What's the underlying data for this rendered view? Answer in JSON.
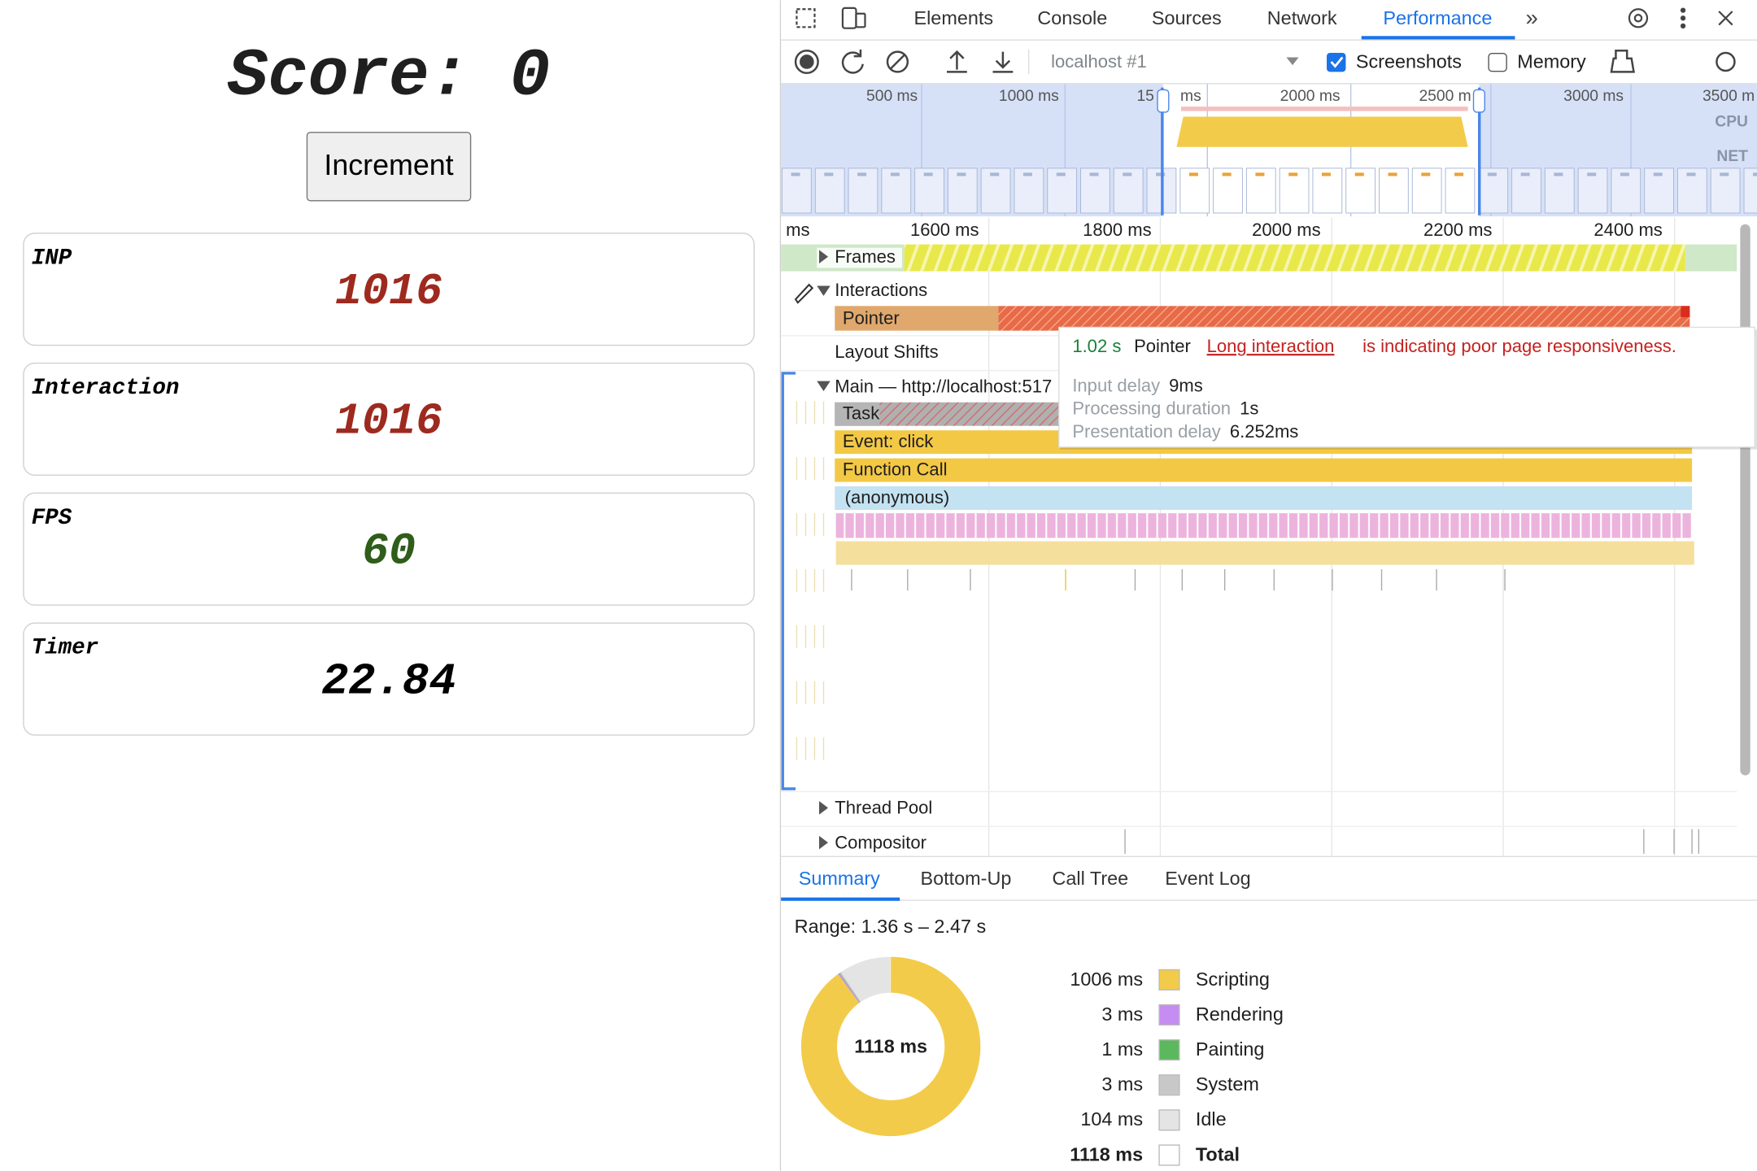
{
  "app": {
    "score": "Score: 0",
    "button": "Increment",
    "cards": [
      {
        "label": "INP",
        "value": "1016"
      },
      {
        "label": "Interaction",
        "value": "1016"
      },
      {
        "label": "FPS",
        "value": "60"
      },
      {
        "label": "Timer",
        "value": "22.84"
      }
    ]
  },
  "devtools": {
    "tabs": [
      "Elements",
      "Console",
      "Sources",
      "Network",
      "Performance"
    ],
    "toolbar": {
      "target": "localhost #1",
      "screenshots": "Screenshots",
      "memory": "Memory"
    },
    "overview_ticks": [
      "500 ms",
      "1000 ms",
      "15",
      "ms",
      "2000 ms",
      "2500 m",
      "3000 ms",
      "3500 m"
    ],
    "overview_labels": [
      "CPU",
      "NET"
    ],
    "ruler": [
      "ms",
      "1600 ms",
      "1800 ms",
      "2000 ms",
      "2200 ms",
      "2400 ms"
    ],
    "tracks": {
      "frames": "Frames",
      "interactions": "Interactions",
      "pointer": "Pointer",
      "layout_shifts": "Layout Shifts",
      "main": "Main — http://localhost:517",
      "task": "Task",
      "event": "Event: click",
      "function_call": "Function Call",
      "anonymous": "(anonymous)",
      "thread_pool": "Thread Pool",
      "compositor": "Compositor"
    },
    "tooltip": {
      "duration": "1.02 s",
      "name": "Pointer",
      "link": "Long interaction",
      "message": "is indicating poor page responsiveness.",
      "rows": [
        {
          "label": "Input delay",
          "value": "9ms"
        },
        {
          "label": "Processing duration",
          "value": "1s"
        },
        {
          "label": "Presentation delay",
          "value": "6.252ms"
        }
      ]
    },
    "bottom_tabs": [
      "Summary",
      "Bottom-Up",
      "Call Tree",
      "Event Log"
    ],
    "summary": {
      "range": "Range: 1.36 s – 2.47 s",
      "center": "1118 ms",
      "rows": [
        {
          "value": "1006 ms",
          "label": "Scripting",
          "color": "#f3cb4a"
        },
        {
          "value": "3 ms",
          "label": "Rendering",
          "color": "#c58cf2"
        },
        {
          "value": "1 ms",
          "label": "Painting",
          "color": "#5cb85c"
        },
        {
          "value": "3 ms",
          "label": "System",
          "color": "#c8c8c8"
        },
        {
          "value": "104 ms",
          "label": "Idle",
          "color": "#e4e4e4"
        },
        {
          "value": "1118 ms",
          "label": "Total",
          "color": "#ffffff"
        }
      ]
    }
  }
}
